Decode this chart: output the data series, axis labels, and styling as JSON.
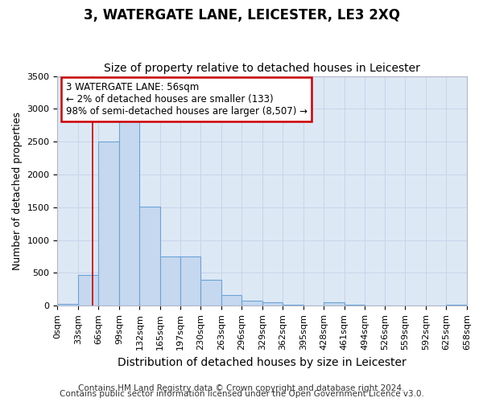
{
  "title": "3, WATERGATE LANE, LEICESTER, LE3 2XQ",
  "subtitle": "Size of property relative to detached houses in Leicester",
  "xlabel": "Distribution of detached houses by size in Leicester",
  "ylabel": "Number of detached properties",
  "footnote1": "Contains HM Land Registry data © Crown copyright and database right 2024.",
  "footnote2": "Contains public sector information licensed under the Open Government Licence v3.0.",
  "annotation_line1": "3 WATERGATE LANE: 56sqm",
  "annotation_line2": "← 2% of detached houses are smaller (133)",
  "annotation_line3": "98% of semi-detached houses are larger (8,507) →",
  "property_size": 56,
  "bin_width": 33,
  "bin_starts": [
    0,
    33,
    66,
    99,
    132,
    165,
    197,
    230,
    263,
    296,
    329,
    362,
    395,
    428,
    461,
    494,
    526,
    559,
    592,
    625
  ],
  "bin_labels": [
    "0sqm",
    "33sqm",
    "66sqm",
    "99sqm",
    "132sqm",
    "165sqm",
    "197sqm",
    "230sqm",
    "263sqm",
    "296sqm",
    "329sqm",
    "362sqm",
    "395sqm",
    "428sqm",
    "461sqm",
    "494sqm",
    "526sqm",
    "559sqm",
    "592sqm",
    "625sqm",
    "658sqm"
  ],
  "bar_heights": [
    25,
    470,
    2500,
    2820,
    1510,
    750,
    750,
    400,
    160,
    80,
    55,
    20,
    0,
    55,
    20,
    0,
    0,
    0,
    0,
    20
  ],
  "bar_color": "#c5d8ef",
  "bar_edge_color": "#6ba3d6",
  "vline_color": "#cc0000",
  "vline_x": 56,
  "ylim": [
    0,
    3500
  ],
  "xlim": [
    0,
    658
  ],
  "grid_color": "#c8d4e8",
  "plot_bg_color": "#dde8f5",
  "annotation_box_color": "#cc0000",
  "title_fontsize": 12,
  "subtitle_fontsize": 10,
  "xlabel_fontsize": 10,
  "ylabel_fontsize": 9,
  "tick_fontsize": 8,
  "annotation_fontsize": 8.5,
  "footnote_fontsize": 7.5
}
